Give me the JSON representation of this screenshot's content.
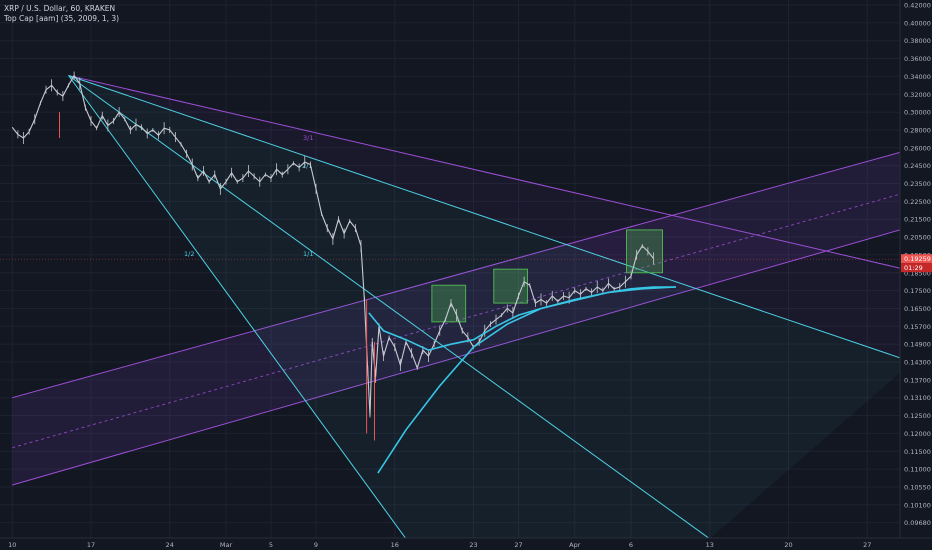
{
  "header": {
    "symbol_line": "XRP / U.S. Dollar, 60, KRAKEN",
    "indicator_line": "Top Cap [aam] (35, 2009, 1, 3)"
  },
  "colors": {
    "background": "#131722",
    "grid": "#1e2230",
    "candle": "#c8cad1",
    "fan_cyan": "#4dd0e1",
    "fan_purple": "#9c4fd6",
    "channel_fill": "#7b3fb8",
    "curve": "#38c6e6",
    "box": "#4caf50",
    "price_tag_red": "#ef5350",
    "price_tag_dark": "#c62828"
  },
  "chart_data": {
    "type": "line",
    "title": "XRP / U.S. Dollar, 60, KRAKEN",
    "y_axis_ticks": [
      "0.42000",
      "0.40000",
      "0.38000",
      "0.36000",
      "0.34000",
      "0.32000",
      "0.30000",
      "0.28000",
      "0.26000",
      "0.24500",
      "0.23500",
      "0.22500",
      "0.21500",
      "0.20500",
      "0.19500",
      "0.18500",
      "0.17500",
      "0.16500",
      "0.15700",
      "0.14900",
      "0.14300",
      "0.13700",
      "0.13100",
      "0.12500",
      "0.12000",
      "0.11500",
      "0.11000",
      "0.10550",
      "0.10100",
      "0.09680"
    ],
    "x_axis_ticks": [
      "10",
      "17",
      "24",
      "Mar",
      "5",
      "9",
      "16",
      "23",
      "27",
      "Apr",
      "6",
      "13",
      "20",
      "27"
    ],
    "x_axis_days": [
      -19,
      -12,
      -5,
      0,
      4,
      8,
      15,
      22,
      26,
      31,
      36,
      43,
      50,
      57
    ],
    "price_tags": [
      "0.19259",
      "01:29"
    ],
    "fan_labels": [
      {
        "text": "3/1",
        "color": "#9c4fd6"
      },
      {
        "text": "2/1",
        "color": "#4dd0e1"
      },
      {
        "text": "1/1",
        "color": "#4dd0e1"
      },
      {
        "text": "1/2",
        "color": "#4dd0e1"
      }
    ],
    "price_path": [
      [
        -19,
        0.283
      ],
      [
        -18.5,
        0.275
      ],
      [
        -18,
        0.271
      ],
      [
        -17.5,
        0.278
      ],
      [
        -17,
        0.292
      ],
      [
        -16.5,
        0.31
      ],
      [
        -16,
        0.325
      ],
      [
        -15.5,
        0.33
      ],
      [
        -15,
        0.322
      ],
      [
        -14.5,
        0.318
      ],
      [
        -14,
        0.33
      ],
      [
        -13.5,
        0.341
      ],
      [
        -13,
        0.332
      ],
      [
        -12.5,
        0.305
      ],
      [
        -12,
        0.29
      ],
      [
        -11.5,
        0.282
      ],
      [
        -11,
        0.296
      ],
      [
        -10.5,
        0.285
      ],
      [
        -10,
        0.29
      ],
      [
        -9.5,
        0.3
      ],
      [
        -9,
        0.292
      ],
      [
        -8.5,
        0.28
      ],
      [
        -8,
        0.286
      ],
      [
        -7.5,
        0.283
      ],
      [
        -7,
        0.276
      ],
      [
        -6.5,
        0.28
      ],
      [
        -6,
        0.274
      ],
      [
        -5.5,
        0.282
      ],
      [
        -5,
        0.28
      ],
      [
        -4.5,
        0.272
      ],
      [
        -4,
        0.264
      ],
      [
        -3.5,
        0.255
      ],
      [
        -3,
        0.246
      ],
      [
        -2.5,
        0.238
      ],
      [
        -2,
        0.242
      ],
      [
        -1.5,
        0.236
      ],
      [
        -1,
        0.24
      ],
      [
        -0.5,
        0.232
      ],
      [
        0,
        0.236
      ],
      [
        0.5,
        0.241
      ],
      [
        1,
        0.236
      ],
      [
        1.5,
        0.238
      ],
      [
        2,
        0.242
      ],
      [
        2.5,
        0.239
      ],
      [
        3,
        0.236
      ],
      [
        3.5,
        0.24
      ],
      [
        4,
        0.238
      ],
      [
        4.5,
        0.243
      ],
      [
        5,
        0.24
      ],
      [
        5.5,
        0.243
      ],
      [
        6,
        0.247
      ],
      [
        6.5,
        0.244
      ],
      [
        7,
        0.248
      ],
      [
        7.5,
        0.246
      ],
      [
        8,
        0.232
      ],
      [
        8.5,
        0.218
      ],
      [
        9,
        0.21
      ],
      [
        9.5,
        0.204
      ],
      [
        10,
        0.215
      ],
      [
        10.5,
        0.207
      ],
      [
        11,
        0.214
      ],
      [
        11.5,
        0.21
      ],
      [
        12,
        0.2
      ],
      [
        12.3,
        0.17
      ],
      [
        12.6,
        0.14
      ],
      [
        12.8,
        0.125
      ],
      [
        13,
        0.15
      ],
      [
        13.3,
        0.138
      ],
      [
        13.6,
        0.157
      ],
      [
        14,
        0.145
      ],
      [
        14.5,
        0.152
      ],
      [
        15,
        0.148
      ],
      [
        15.5,
        0.142
      ],
      [
        16,
        0.15
      ],
      [
        16.5,
        0.146
      ],
      [
        17,
        0.141
      ],
      [
        17.5,
        0.147
      ],
      [
        18,
        0.145
      ],
      [
        18.5,
        0.149
      ],
      [
        19,
        0.155
      ],
      [
        19.5,
        0.16
      ],
      [
        20,
        0.168
      ],
      [
        20.5,
        0.162
      ],
      [
        21,
        0.155
      ],
      [
        21.5,
        0.152
      ],
      [
        22,
        0.148
      ],
      [
        22.5,
        0.15
      ],
      [
        23,
        0.155
      ],
      [
        23.5,
        0.158
      ],
      [
        24,
        0.16
      ],
      [
        24.5,
        0.162
      ],
      [
        25,
        0.165
      ],
      [
        25.5,
        0.163
      ],
      [
        26,
        0.172
      ],
      [
        26.5,
        0.18
      ],
      [
        27,
        0.178
      ],
      [
        27.5,
        0.168
      ],
      [
        28,
        0.17
      ],
      [
        28.5,
        0.168
      ],
      [
        29,
        0.172
      ],
      [
        29.5,
        0.169
      ],
      [
        30,
        0.172
      ],
      [
        30.5,
        0.171
      ],
      [
        31,
        0.175
      ],
      [
        31.5,
        0.173
      ],
      [
        32,
        0.176
      ],
      [
        32.5,
        0.174
      ],
      [
        33,
        0.177
      ],
      [
        33.5,
        0.175
      ],
      [
        34,
        0.179
      ],
      [
        34.5,
        0.176
      ],
      [
        35,
        0.177
      ],
      [
        35.5,
        0.18
      ],
      [
        36,
        0.183
      ],
      [
        36.5,
        0.195
      ],
      [
        37,
        0.2
      ],
      [
        37.5,
        0.197
      ],
      [
        38,
        0.193
      ]
    ],
    "fan_lines": [
      {
        "label": "3/1",
        "from": [
          -14,
          0.341
        ],
        "to": [
          61,
          0.186
        ],
        "color": "#9c4fd6"
      },
      {
        "label": "2/1",
        "from": [
          -14,
          0.341
        ],
        "to": [
          61,
          0.143
        ],
        "color": "#4dd0e1"
      },
      {
        "label": "1/1",
        "from": [
          -14,
          0.341
        ],
        "to": [
          43,
          0.093
        ],
        "color": "#4dd0e1"
      },
      {
        "label": "1/2",
        "from": [
          -14,
          0.341
        ],
        "to": [
          16,
          0.093
        ],
        "color": "#4dd0e1"
      }
    ],
    "channel": {
      "upper": {
        "from": [
          -19,
          0.131
        ],
        "to": [
          61,
          0.259
        ]
      },
      "middle": {
        "from": [
          -19,
          0.116
        ],
        "to": [
          61,
          0.231
        ]
      },
      "lower": {
        "from": [
          -19,
          0.106
        ],
        "to": [
          61,
          0.211
        ]
      }
    },
    "curves": [
      {
        "points": [
          [
            12.7,
            0.163
          ],
          [
            14,
            0.155
          ],
          [
            16,
            0.151
          ],
          [
            18,
            0.147
          ],
          [
            20,
            0.149
          ],
          [
            22,
            0.151
          ],
          [
            24,
            0.157
          ],
          [
            26,
            0.162
          ],
          [
            28,
            0.165
          ],
          [
            30,
            0.168
          ],
          [
            32,
            0.171
          ],
          [
            34,
            0.174
          ],
          [
            36,
            0.176
          ],
          [
            38,
            0.177
          ],
          [
            40,
            0.177
          ]
        ]
      },
      {
        "points": [
          [
            13.5,
            0.109
          ],
          [
            16,
            0.121
          ],
          [
            19,
            0.135
          ],
          [
            22,
            0.148
          ],
          [
            25,
            0.158
          ],
          [
            28,
            0.165
          ],
          [
            31,
            0.17
          ],
          [
            34,
            0.174
          ],
          [
            37,
            0.176
          ],
          [
            40,
            0.177
          ]
        ]
      }
    ],
    "boxes": [
      {
        "x0": 18.3,
        "x1": 21.3,
        "y0": 0.159,
        "y1": 0.178
      },
      {
        "x0": 23.8,
        "x1": 26.8,
        "y0": 0.168,
        "y1": 0.187
      },
      {
        "x0": 35.6,
        "x1": 38.8,
        "y0": 0.185,
        "y1": 0.209
      }
    ],
    "current_price": 0.19259
  }
}
